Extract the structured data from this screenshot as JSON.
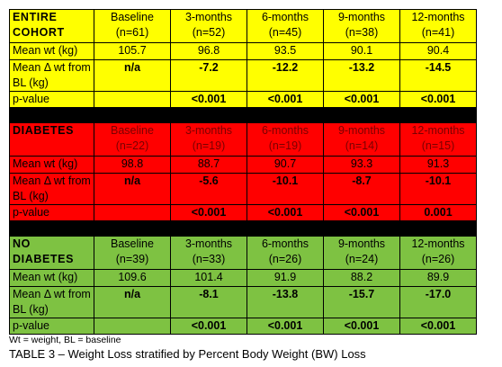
{
  "table": {
    "sections": [
      {
        "label": "ENTIRE COHORT",
        "color": "#ffff00",
        "header_color": "#000000",
        "columns": [
          [
            "Baseline",
            "(n=61)"
          ],
          [
            "3-months",
            "(n=52)"
          ],
          [
            "6-months",
            "(n=45)"
          ],
          [
            "9-months",
            "(n=38)"
          ],
          [
            "12-months",
            "(n=41)"
          ]
        ],
        "rows": [
          {
            "label": "Mean wt (kg)",
            "bold": false,
            "values": [
              "105.7",
              "96.8",
              "93.5",
              "90.1",
              "90.4"
            ]
          },
          {
            "label": "Mean Δ wt from BL (kg)",
            "bold": true,
            "values": [
              "n/a",
              "-7.2",
              "-12.2",
              "-13.2",
              "-14.5"
            ]
          },
          {
            "label": "p-value",
            "bold": true,
            "values": [
              null,
              "<0.001",
              "<0.001",
              "<0.001",
              "<0.001"
            ]
          }
        ]
      },
      {
        "label": "DIABETES",
        "color": "#ff0000",
        "header_color": "#7a0000",
        "columns": [
          [
            "Baseline",
            "(n=22)"
          ],
          [
            "3-months",
            "(n=19)"
          ],
          [
            "6-months",
            "(n=19)"
          ],
          [
            "9-months",
            "(n=14)"
          ],
          [
            "12-months",
            "(n=15)"
          ]
        ],
        "rows": [
          {
            "label": "Mean wt (kg)",
            "bold": false,
            "values": [
              "98.8",
              "88.7",
              "90.7",
              "93.3",
              "91.3"
            ]
          },
          {
            "label": "Mean Δ wt from BL (kg)",
            "bold": true,
            "values": [
              "n/a",
              "-5.6",
              "-10.1",
              "-8.7",
              "-10.1"
            ]
          },
          {
            "label": "p-value",
            "bold": true,
            "values": [
              null,
              "<0.001",
              "<0.001",
              "<0.001",
              "0.001"
            ]
          }
        ]
      },
      {
        "label": "NO DIABETES",
        "color": "#7ec242",
        "header_color": "#000000",
        "columns": [
          [
            "Baseline",
            "(n=39)"
          ],
          [
            "3-months",
            "(n=33)"
          ],
          [
            "6-months",
            "(n=26)"
          ],
          [
            "9-months",
            "(n=24)"
          ],
          [
            "12-months",
            "(n=26)"
          ]
        ],
        "rows": [
          {
            "label": "Mean wt (kg)",
            "bold": false,
            "values": [
              "109.6",
              "101.4",
              "91.9",
              "88.2",
              "89.9"
            ]
          },
          {
            "label": "Mean Δ wt from BL (kg)",
            "bold": true,
            "values": [
              "n/a",
              "-8.1",
              "-13.8",
              "-15.7",
              "-17.0"
            ]
          },
          {
            "label": "p-value",
            "bold": true,
            "values": [
              null,
              "<0.001",
              "<0.001",
              "<0.001",
              "<0.001"
            ]
          }
        ]
      }
    ],
    "footnote": "Wt = weight, BL = baseline",
    "caption": "TABLE 3 – Weight Loss stratified by Percent Body Weight (BW) Loss"
  }
}
